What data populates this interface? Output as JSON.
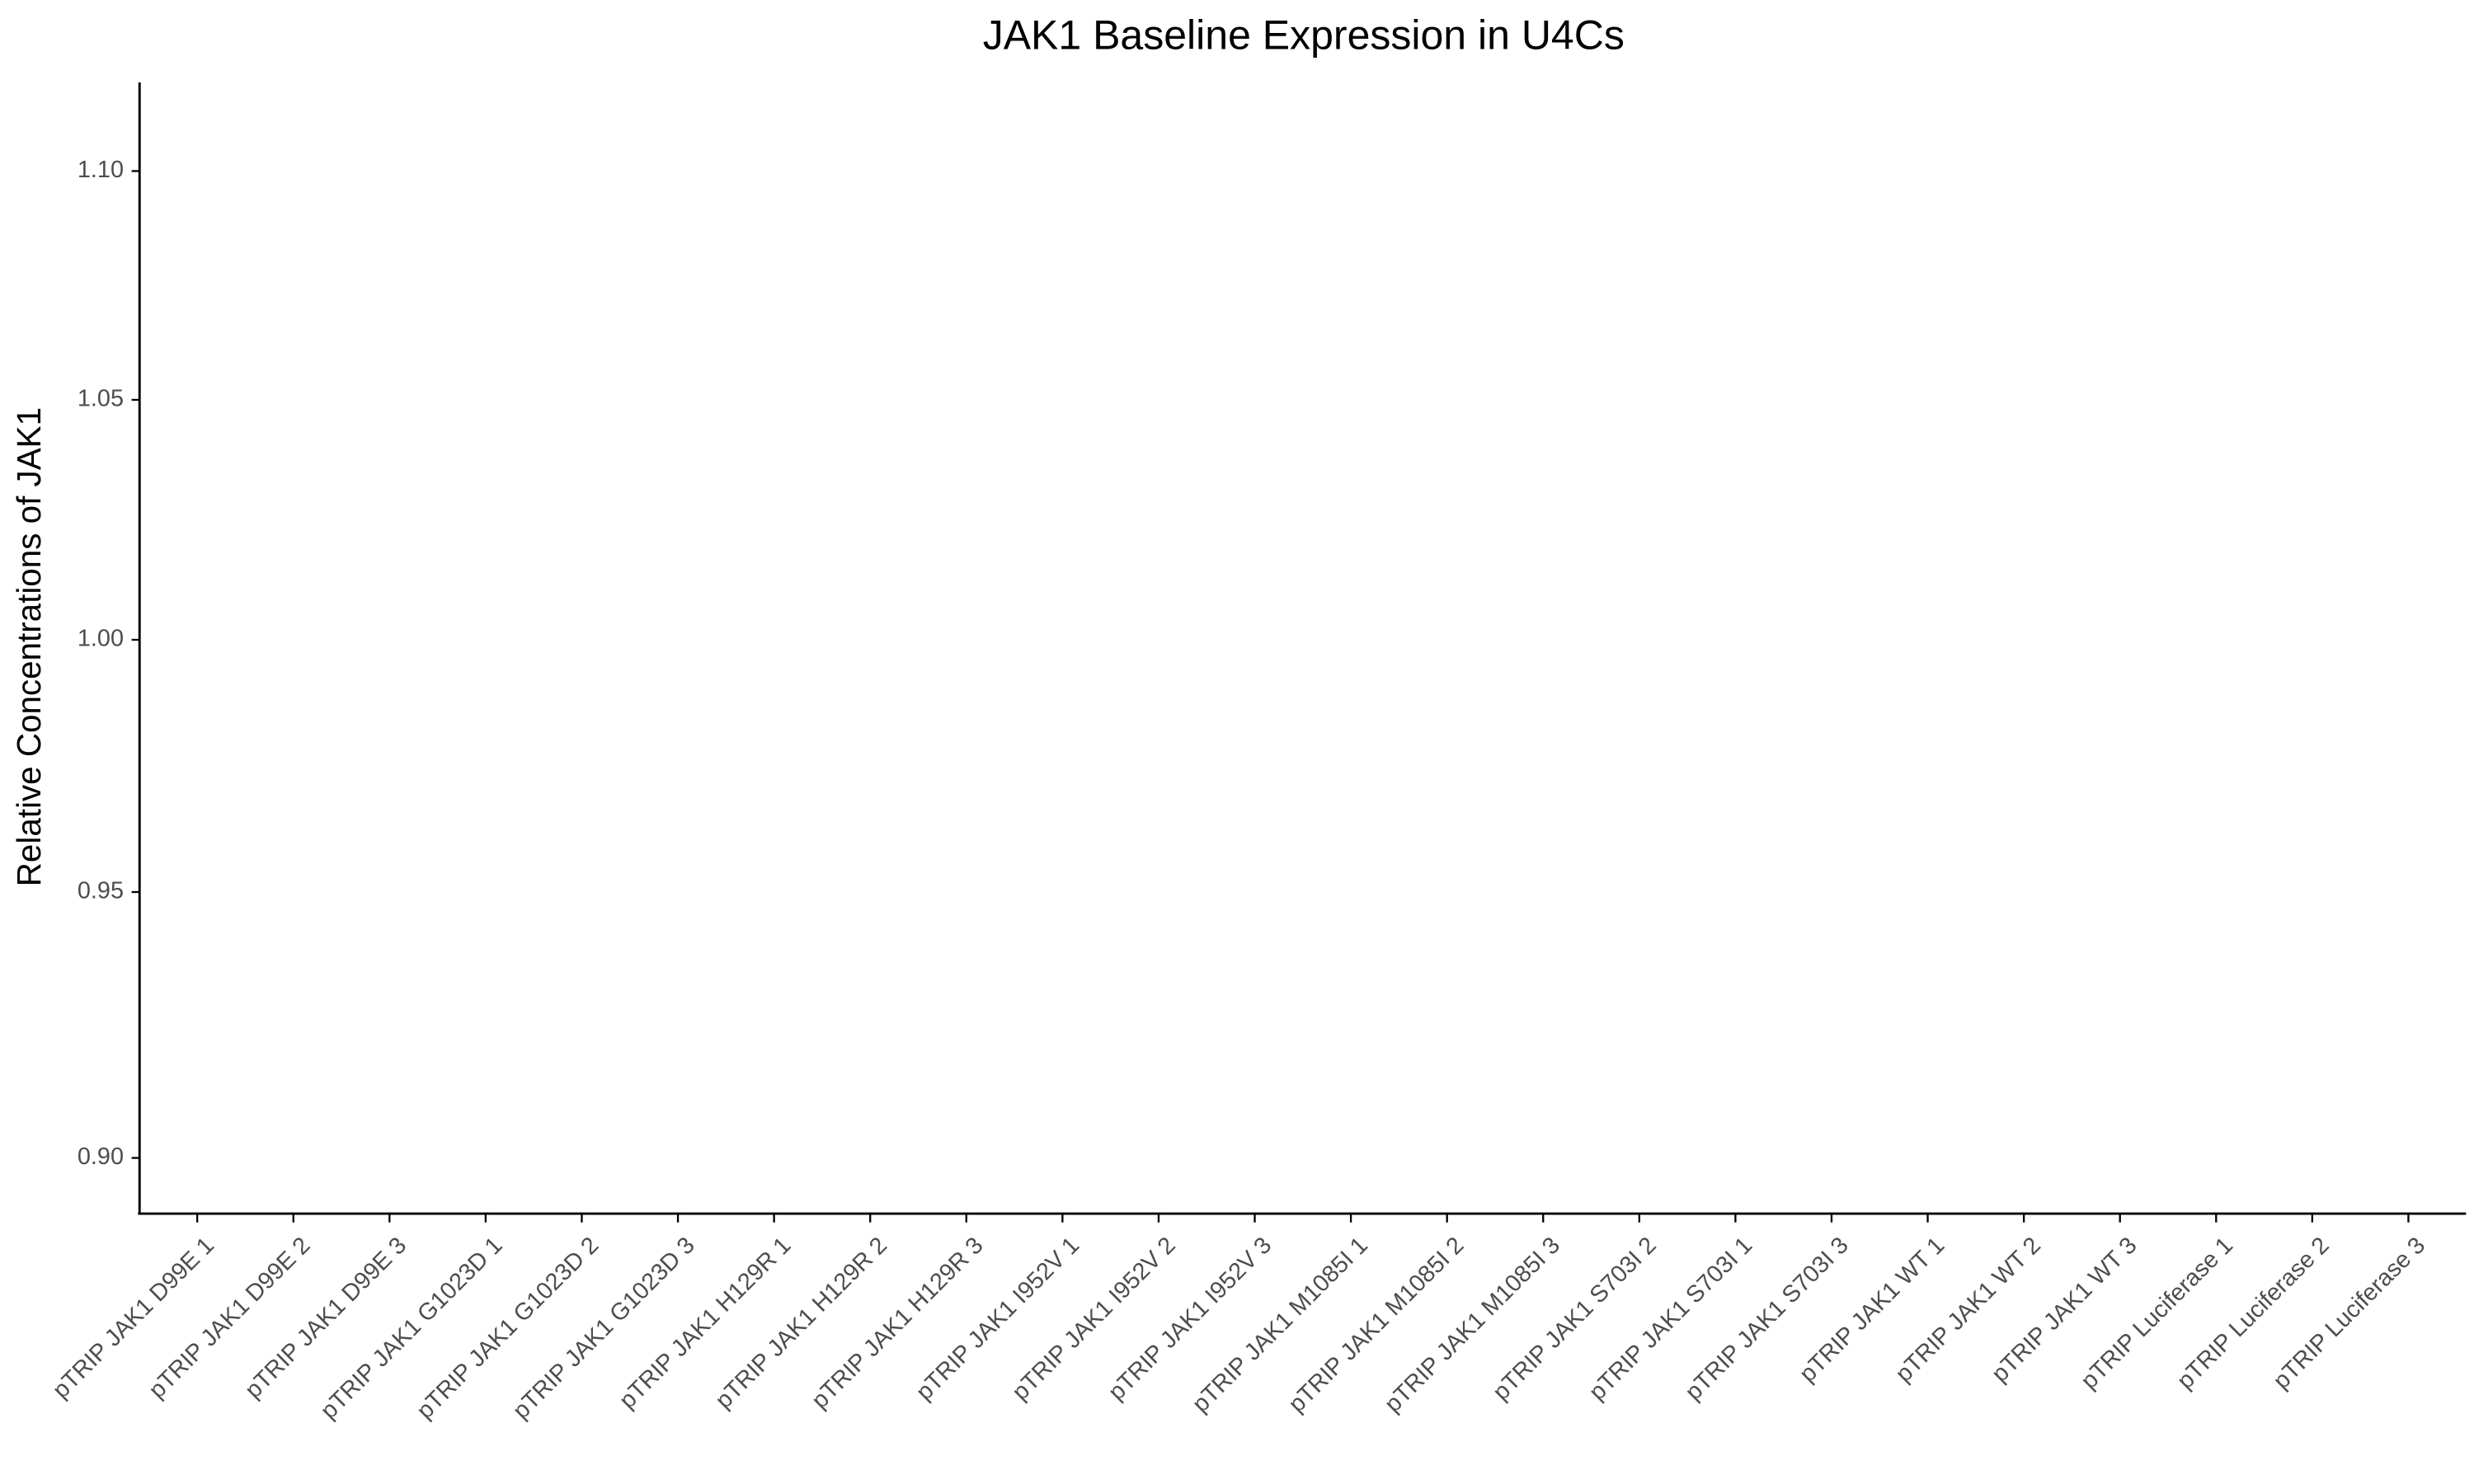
{
  "chart_data": {
    "type": "bar",
    "title": "JAK1 Baseline Expression in U4Cs",
    "y_label": "Relative Concentrations of JAK1",
    "categories": [
      "pTRIP JAK1 D99E 1",
      "pTRIP JAK1 D99E 2",
      "pTRIP JAK1 D99E 3",
      "pTRIP JAK1 G1023D 1",
      "pTRIP JAK1 G1023D 2",
      "pTRIP JAK1 G1023D 3",
      "pTRIP JAK1 H129R 1",
      "pTRIP JAK1 H129R 2",
      "pTRIP JAK1 H129R 3",
      "pTRIP JAK1 I952V 1",
      "pTRIP JAK1 I952V 2",
      "pTRIP JAK1 I952V 3",
      "pTRIP JAK1 M1085I 1",
      "pTRIP JAK1 M1085I 2",
      "pTRIP JAK1 M1085I 3",
      "pTRIP JAK1 S703I 2",
      "pTRIP JAK1 S703I 1",
      "pTRIP JAK1 S703I 3",
      "pTRIP JAK1 WT 1",
      "pTRIP JAK1 WT 2",
      "pTRIP JAK1 WT 3",
      "pTRIP Luciferase 1",
      "pTRIP Luciferase 2",
      "pTRIP Luciferase 3"
    ],
    "ylim": [
      0.89,
      1.12
    ],
    "yticks": [
      {
        "value": 0.9,
        "label": "0.90"
      },
      0.95,
      {
        "value": 1.0,
        "label": "1.00"
      },
      1.05,
      {
        "value": 1.1,
        "label": "1.10"
      }
    ],
    "log_y": true,
    "grid": false
  }
}
